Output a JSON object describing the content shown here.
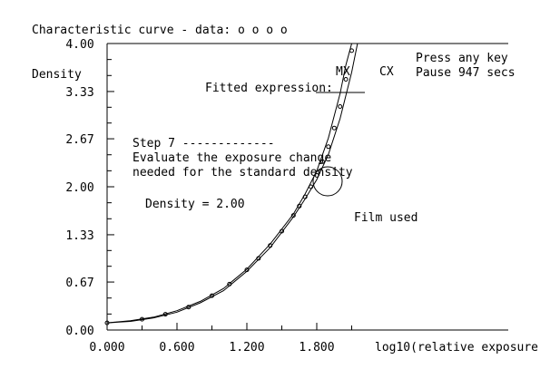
{
  "chart_data": {
    "type": "line",
    "title": "Characteristic curve - data: o o o o",
    "ylabel": "Density",
    "xlabel": "log10(relative exposure",
    "xlim": [
      0.0,
      2.2
    ],
    "ylim": [
      0.0,
      4.0
    ],
    "x_tick_labels": [
      "0.000",
      "0.600",
      "1.200",
      "1.800"
    ],
    "x_tick_values": [
      0.0,
      0.6,
      1.2,
      1.8
    ],
    "y_tick_labels": [
      "0.00",
      "0.67",
      "1.33",
      "2.00",
      "2.67",
      "3.33",
      "4.00"
    ],
    "y_tick_values": [
      0.0,
      0.67,
      1.33,
      2.0,
      2.67,
      3.33,
      4.0
    ],
    "grid": false,
    "series": [
      {
        "name": "MX",
        "x": [
          0.0,
          0.2,
          0.4,
          0.6,
          0.8,
          1.0,
          1.2,
          1.4,
          1.6,
          1.7,
          1.8,
          1.9,
          2.0,
          2.05,
          2.1
        ],
        "y": [
          0.1,
          0.13,
          0.18,
          0.27,
          0.4,
          0.58,
          0.85,
          1.2,
          1.62,
          1.9,
          2.22,
          2.68,
          3.3,
          3.7,
          4.0
        ]
      },
      {
        "name": "CX",
        "x": [
          0.0,
          0.2,
          0.4,
          0.6,
          0.8,
          1.0,
          1.2,
          1.4,
          1.6,
          1.7,
          1.8,
          1.9,
          2.0,
          2.1,
          2.15
        ],
        "y": [
          0.1,
          0.12,
          0.17,
          0.25,
          0.38,
          0.55,
          0.82,
          1.15,
          1.58,
          1.83,
          2.1,
          2.45,
          2.95,
          3.6,
          4.0
        ]
      }
    ],
    "data_points": {
      "x": [
        0.0,
        0.3,
        0.5,
        0.7,
        0.9,
        1.05,
        1.2,
        1.3,
        1.4,
        1.5,
        1.6,
        1.65,
        1.7,
        1.75,
        1.8,
        1.85,
        1.9,
        1.95,
        2.0,
        2.05,
        2.1
      ],
      "y": [
        0.1,
        0.15,
        0.22,
        0.32,
        0.48,
        0.64,
        0.84,
        1.0,
        1.18,
        1.38,
        1.6,
        1.73,
        1.86,
        2.0,
        2.16,
        2.35,
        2.56,
        2.82,
        3.12,
        3.5,
        3.9
      ]
    }
  },
  "annotations": {
    "press_key_line1": "Press any key",
    "press_key_line2": "Pause 947 secs",
    "fitted_expression": "Fitted expression:",
    "step_line1": "Step 7 -------------",
    "step_line2": "Evaluate the exposure change",
    "step_line3": "needed for the standard density",
    "density_readout": "Density =  2.00",
    "film_used": "Film used",
    "label_mx": "MX",
    "label_cx": "CX"
  },
  "colors": {
    "background": "#ffffff",
    "foreground": "#000000"
  }
}
